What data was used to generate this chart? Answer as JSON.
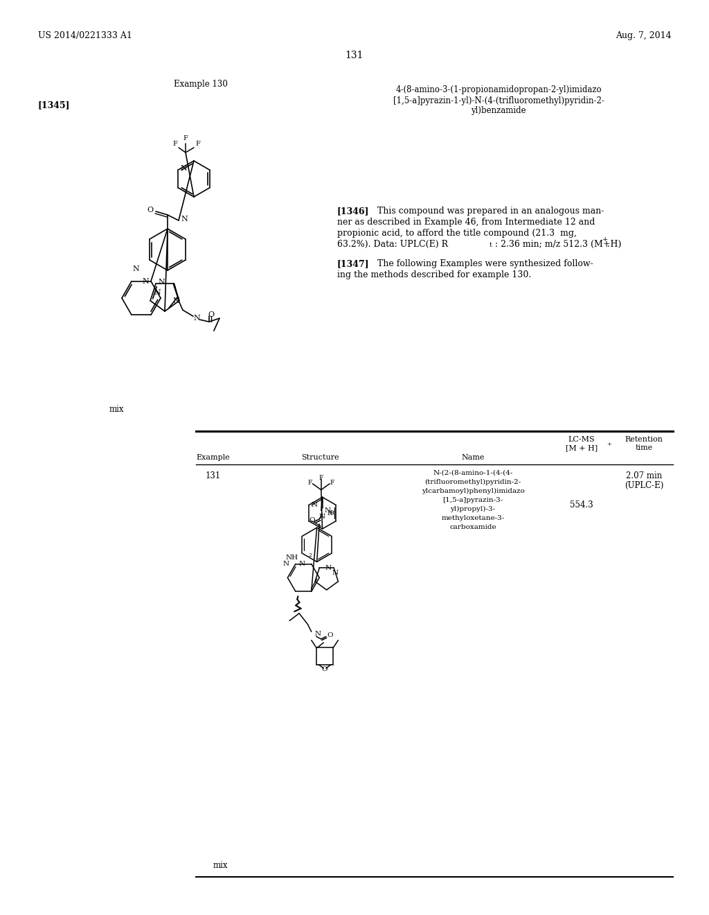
{
  "bg_color": "#ffffff",
  "header_left": "US 2014/0221333 A1",
  "header_right": "Aug. 7, 2014",
  "page_number": "131",
  "example_label": "Example 130",
  "ref_label": "[1345]",
  "compound_name_line1": "4-(8-amino-3-(1-propionamidopropan-2-yl)imidazo",
  "compound_name_line2": "[1,5-a]pyrazin-1-yl)-N-(4-(trifluoromethyl)pyridin-2-",
  "compound_name_line3": "yl)benzamide",
  "para1346_bold": "[1346]",
  "para1346_line1": "    This compound was prepared in an analogous man-",
  "para1346_line2": "ner as described in Example 46, from Intermediate 12 and",
  "para1346_line3": "propionic acid, to afford the title compound (21.3  mg,",
  "para1346_line4": "63.2%). Data: UPLC(E) R",
  "para1346_sub": "t",
  "para1346_end": ": 2.36 min; m/z 512.3 (M+H)",
  "para1346_sup": "+",
  "para1346_period": ".",
  "para1347_bold": "[1347]",
  "para1347_line1": "    The following Examples were synthesized follow-",
  "para1347_line2": "ing the methods described for example 130.",
  "mix_label": "mix",
  "table_col1": "Example",
  "table_col2": "Structure",
  "table_col3": "Name",
  "table_col4a": "LC-MS",
  "table_col4b": "[M + H]",
  "table_col4sup": "+",
  "table_col5a": "Retention",
  "table_col5b": "time",
  "row1_ex": "131",
  "row1_name_line1": "N-(2-(8-amino-1-(4-(4-",
  "row1_name_line2": "(trifluoromethyl)pyridin-2-",
  "row1_name_line3": "ylcarbamoyl)phenyl)imidazo",
  "row1_name_line4": "[1,5-a]pyrazin-3-",
  "row1_name_line5": "yl)propyl)-3-",
  "row1_name_line6": "methyloxetane-3-",
  "row1_name_line7": "carboxamide",
  "row1_ms": "554.3",
  "row1_rt_line1": "2.07 min",
  "row1_rt_line2": "(UPLC-E)",
  "mix_label2": "mix"
}
